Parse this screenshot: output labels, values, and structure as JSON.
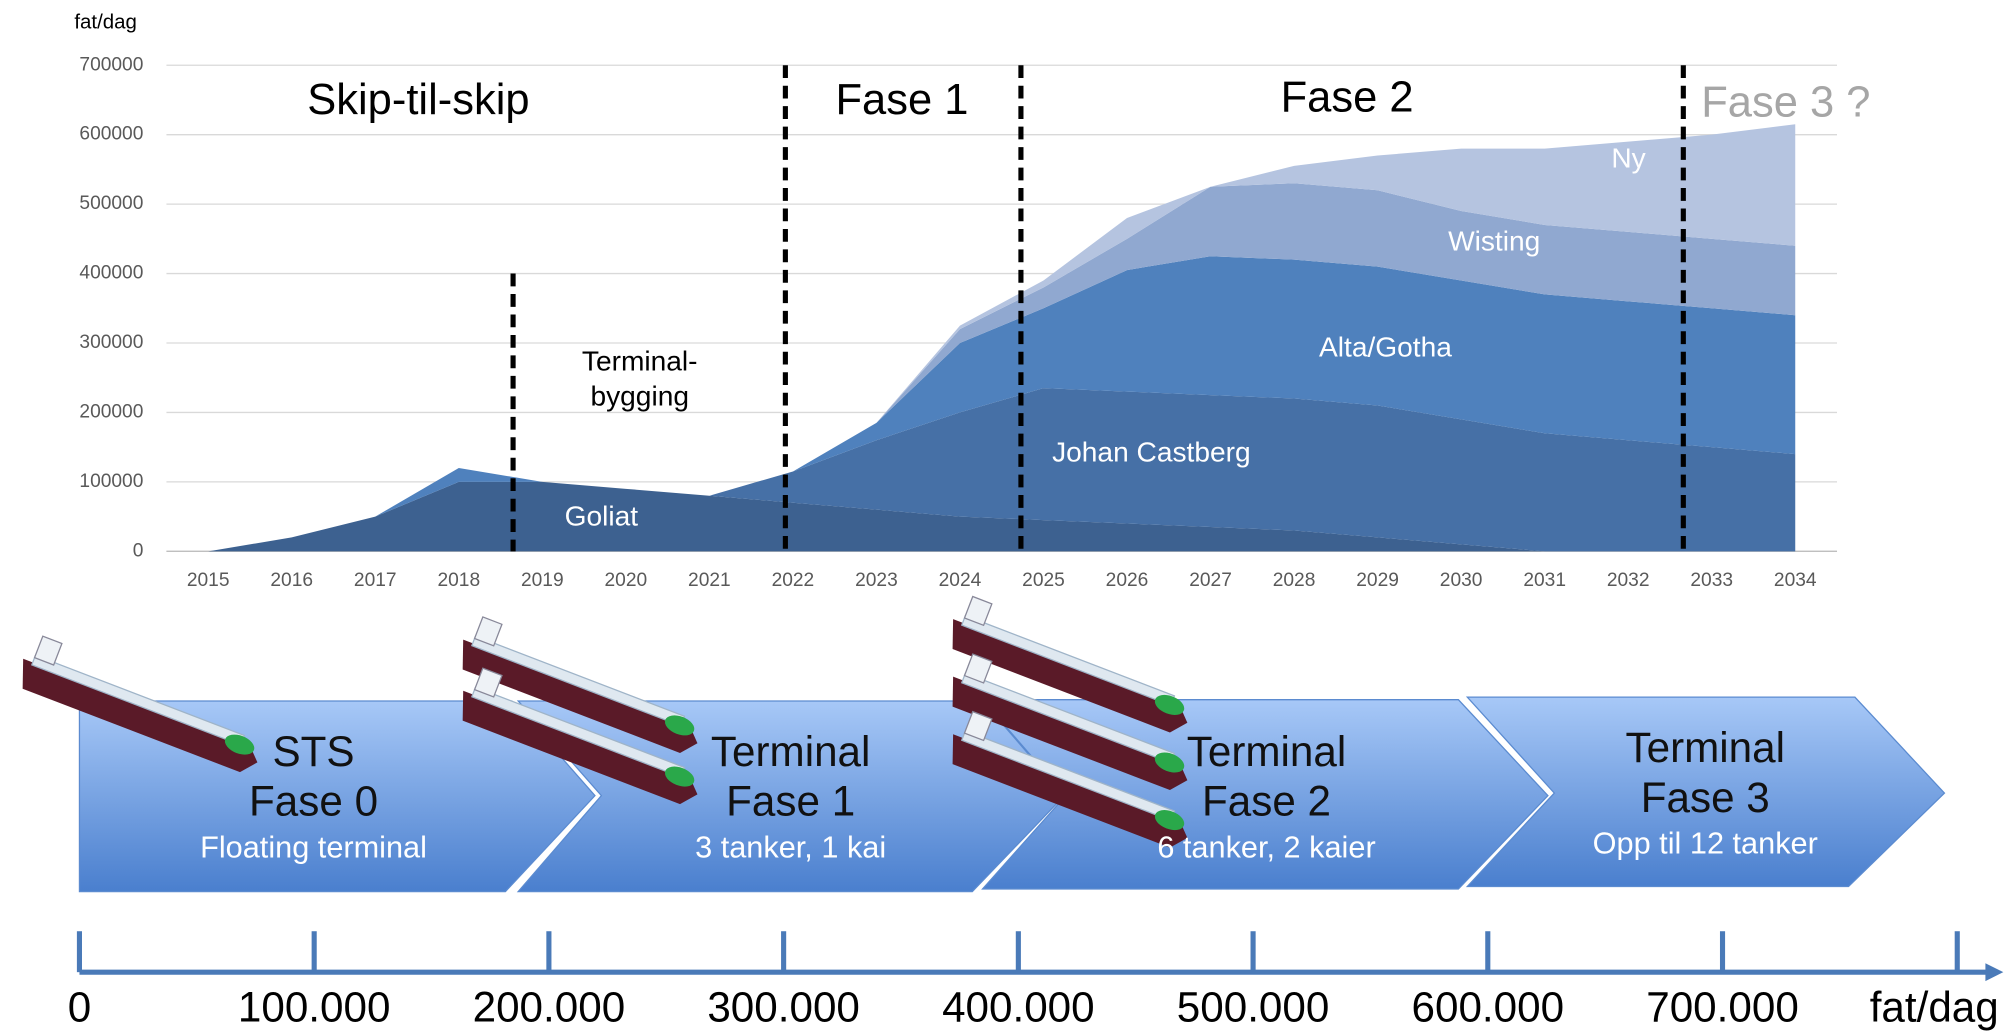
{
  "chart_data": {
    "type": "area",
    "y_label": "fat/dag",
    "x": [
      2015,
      2016,
      2017,
      2018,
      2019,
      2020,
      2021,
      2022,
      2023,
      2024,
      2025,
      2026,
      2027,
      2028,
      2029,
      2030,
      2031,
      2032,
      2033,
      2034
    ],
    "xlim": [
      2014.5,
      2034.5
    ],
    "ylim": [
      0,
      700000
    ],
    "yticks": [
      0,
      100000,
      200000,
      300000,
      400000,
      500000,
      600000,
      700000
    ],
    "grid": true,
    "series": [
      {
        "name": "Goliat",
        "color": "#3d6190",
        "values": [
          0,
          20000,
          50000,
          100000,
          100000,
          90000,
          80000,
          70000,
          60000,
          50000,
          45000,
          40000,
          35000,
          30000,
          20000,
          10000,
          0,
          0,
          0,
          0
        ]
      },
      {
        "name": "Johan Castberg",
        "color": "#4670a6",
        "values": [
          0,
          0,
          0,
          0,
          0,
          0,
          0,
          45000,
          100000,
          150000,
          190000,
          190000,
          190000,
          190000,
          190000,
          180000,
          170000,
          160000,
          150000,
          140000
        ]
      },
      {
        "name": "Alta/Gotha",
        "color": "#4f81bd",
        "values": [
          0,
          0,
          0,
          20000,
          0,
          0,
          0,
          0,
          25000,
          100000,
          115000,
          175000,
          200000,
          200000,
          200000,
          200000,
          200000,
          200000,
          200000,
          200000
        ]
      },
      {
        "name": "Wisting",
        "color": "#90a8d0",
        "values": [
          0,
          0,
          0,
          0,
          0,
          0,
          0,
          0,
          0,
          20000,
          30000,
          45000,
          100000,
          110000,
          110000,
          100000,
          100000,
          100000,
          100000,
          100000
        ]
      },
      {
        "name": "Ny",
        "color": "#b5c4e0",
        "values": [
          0,
          0,
          0,
          0,
          0,
          0,
          0,
          0,
          0,
          5000,
          10000,
          30000,
          0,
          25000,
          50000,
          90000,
          110000,
          130000,
          150000,
          175000
        ]
      }
    ],
    "phase_lines": [
      {
        "x": 2018.65,
        "top": 400000
      },
      {
        "x": 2021.91,
        "top": 700000
      },
      {
        "x": 2024.73,
        "top": 700000
      },
      {
        "x": 2032.66,
        "top": 700000
      }
    ],
    "annotations": [
      {
        "text": "Skip-til-skip",
        "color": "#000000"
      },
      {
        "text": "Fase 1",
        "color": "#000000"
      },
      {
        "text": "Fase 2",
        "color": "#000000"
      },
      {
        "text": "Fase 3 ?",
        "color": "#a6a6a6"
      },
      {
        "text": "Terminal-",
        "color": "#000000"
      },
      {
        "text": "bygging",
        "color": "#000000"
      }
    ]
  },
  "phases": [
    {
      "title": [
        "STS",
        "Fase 0"
      ],
      "sub": "Floating terminal"
    },
    {
      "title": [
        "Terminal",
        "Fase 1"
      ],
      "sub": "3 tanker, 1 kai"
    },
    {
      "title": [
        "Terminal",
        "Fase 2"
      ],
      "sub": "6 tanker, 2 kaier"
    },
    {
      "title": [
        "Terminal",
        "Fase 3"
      ],
      "sub": "Opp til 12 tanker"
    }
  ],
  "capacity_axis": {
    "xlim": [
      0,
      800000
    ],
    "xticks": [
      {
        "value": 0,
        "label": "0"
      },
      {
        "value": 100000,
        "label": "100.000"
      },
      {
        "value": 200000,
        "label": "200.000"
      },
      {
        "value": 300000,
        "label": "300.000"
      },
      {
        "value": 400000,
        "label": "400.000"
      },
      {
        "value": 500000,
        "label": "500.000"
      },
      {
        "value": 600000,
        "label": "600.000"
      },
      {
        "value": 700000,
        "label": "700.000"
      }
    ],
    "unit": "fat/dag"
  }
}
